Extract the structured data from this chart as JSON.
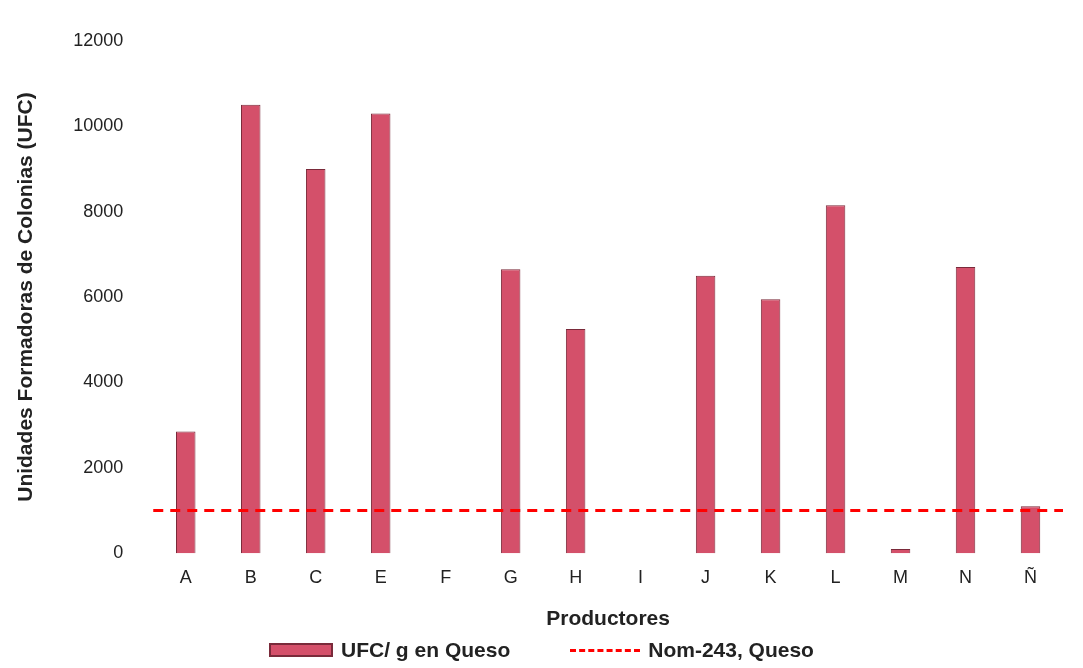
{
  "chart_data": {
    "type": "bar",
    "xlabel": "Productores",
    "ylabel": "Unidades Formadoras de Colonias (UFC)",
    "categories": [
      "A",
      "B",
      "C",
      "E",
      "F",
      "G",
      "H",
      "I",
      "J",
      "K",
      "L",
      "M",
      "N",
      "Ñ"
    ],
    "series": [
      {
        "name": "UFC/ g en Queso",
        "color": "#d4506a",
        "values": [
          2850,
          10500,
          9000,
          10300,
          0,
          6650,
          5250,
          0,
          6500,
          5950,
          8150,
          100,
          6700,
          1100
        ]
      }
    ],
    "ylim": [
      0,
      12000
    ],
    "yticks": [
      0,
      2000,
      4000,
      6000,
      8000,
      10000,
      12000
    ],
    "ref_lines": [
      {
        "axis": "y",
        "value": 1000,
        "label": "Nom-243, Queso",
        "color": "#ff0000",
        "line_style": "dashed"
      }
    ],
    "grid": false,
    "legend": "bottom"
  }
}
